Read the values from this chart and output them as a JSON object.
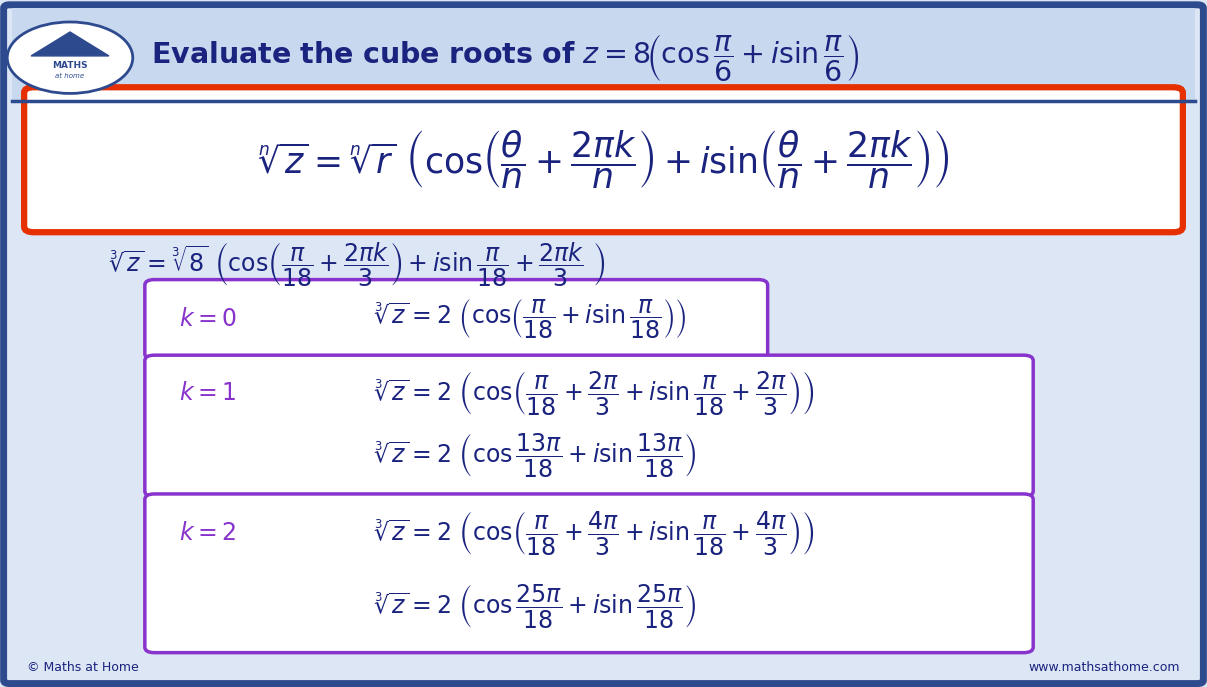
{
  "bg_color": "#dce6f5",
  "outer_border_color": "#2e4a8e",
  "header_bg": "#c8d8ef",
  "formula_box_color": "#e63000",
  "purple_box_color": "#8833cc",
  "dark_blue": "#1a237e",
  "purple_text": "#8833cc",
  "white": "#ffffff",
  "footer_left": "© Maths at Home",
  "footer_right": "www.mathsathome.com",
  "title": "Evaluate the cube roots of $z = 8(\\cos\\dfrac{\\pi}{6} + i\\sin\\dfrac{\\pi}{6})$"
}
